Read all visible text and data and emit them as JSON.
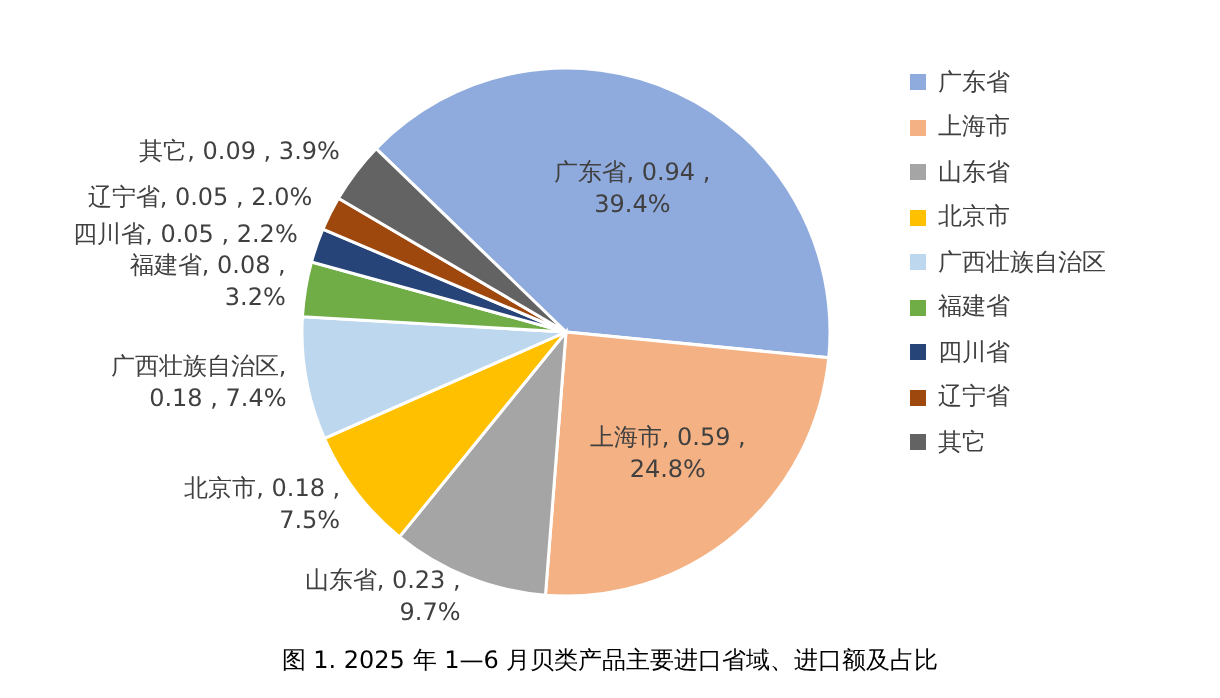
{
  "chart_data": {
    "type": "pie",
    "title": "图 1. 2025 年 1—6 月贝类产品主要进口省域、进口额及占比",
    "categories": [
      "广东省",
      "上海市",
      "山东省",
      "北京市",
      "广西壮族自治区",
      "福建省",
      "四川省",
      "辽宁省",
      "其它"
    ],
    "values": [
      0.94,
      0.59,
      0.23,
      0.18,
      0.18,
      0.08,
      0.05,
      0.05,
      0.09
    ],
    "colors": [
      "#8faadc",
      "#f4b183",
      "#a5a5a5",
      "#ffc000",
      "#bdd7ee",
      "#70ad47",
      "#264478",
      "#9e480e",
      "#636363"
    ],
    "value_labels": [
      "广东省, 0.94 ,\n39.4%",
      "上海市, 0.59 ,\n24.8%",
      "山东省, 0.23 ,\n9.7%",
      "北京市, 0.18 ,\n7.5%",
      "广西壮族自治区,\n0.18 , 7.4%",
      "福建省, 0.08 ,\n3.2%",
      "四川省, 0.05 , 2.2%",
      "辽宁省, 0.05 , 2.0%",
      "其它, 0.09 , 3.9%"
    ],
    "legend": "right"
  }
}
